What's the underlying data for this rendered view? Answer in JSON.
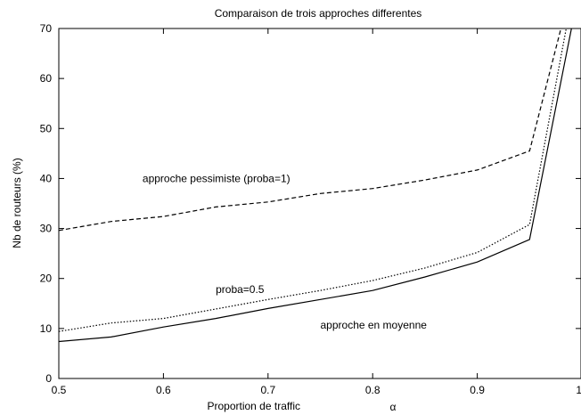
{
  "chart_data": {
    "type": "line",
    "title": "Comparaison de trois approches differentes",
    "xlabel": "Proportion de traffic",
    "xlabel_symbol": "α",
    "ylabel": "Nb de routeurs (%)",
    "xlim": [
      0.5,
      1.0
    ],
    "ylim": [
      0,
      70
    ],
    "xticks": [
      "0.5",
      "0.6",
      "0.7",
      "0.8",
      "0.9",
      "1"
    ],
    "yticks": [
      "0",
      "10",
      "20",
      "30",
      "40",
      "50",
      "60",
      "70"
    ],
    "grid": false,
    "series": [
      {
        "style": "dashed",
        "x": [
          0.5,
          0.55,
          0.6,
          0.65,
          0.7,
          0.75,
          0.8,
          0.85,
          0.9,
          0.95,
          0.98
        ],
        "y": [
          29.6,
          31.4,
          32.4,
          34.3,
          35.3,
          37.0,
          38.0,
          39.7,
          41.7,
          45.5,
          70
        ]
      },
      {
        "style": "dotted",
        "x": [
          0.5,
          0.55,
          0.6,
          0.65,
          0.7,
          0.75,
          0.8,
          0.85,
          0.9,
          0.95,
          0.985
        ],
        "y": [
          9.4,
          11.1,
          12.0,
          13.9,
          15.8,
          17.6,
          19.6,
          22.1,
          25.2,
          30.8,
          70
        ]
      },
      {
        "style": "solid",
        "x": [
          0.5,
          0.55,
          0.6,
          0.65,
          0.7,
          0.75,
          0.8,
          0.85,
          0.9,
          0.95,
          0.99
        ],
        "y": [
          7.4,
          8.3,
          10.3,
          12.0,
          14.0,
          15.8,
          17.6,
          20.3,
          23.3,
          27.8,
          70
        ]
      }
    ],
    "annotations": [
      {
        "text": "approche pessimiste (proba=1)",
        "x": 0.58,
        "y": 40
      },
      {
        "text": "proba=0.5",
        "x": 0.65,
        "y": 17.8
      },
      {
        "text": "approche en moyenne",
        "x": 0.75,
        "y": 10.7
      }
    ]
  }
}
